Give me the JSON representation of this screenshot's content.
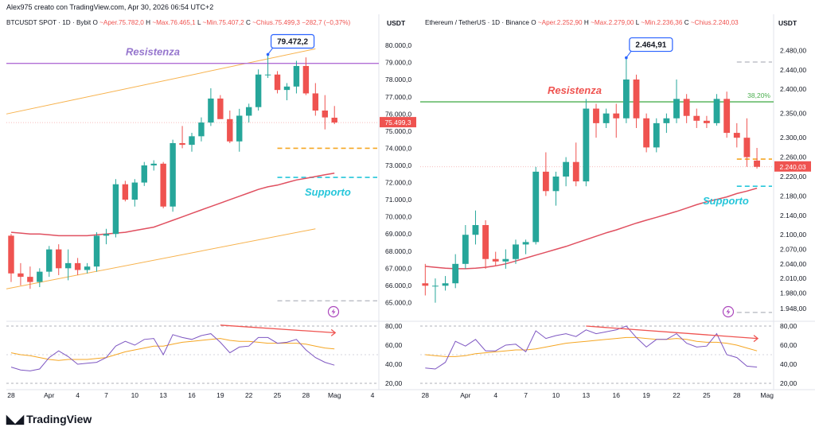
{
  "caption": "Alex975 creato con TradingView.com, Apr 30, 2026 06:54 UTC+2",
  "brand": {
    "name": "TradingView",
    "logo_icon": "tradingview-logo-icon"
  },
  "colors": {
    "up": "#26a69a",
    "down": "#ef5350",
    "ma": "#e05060",
    "resist_btc": "#b16fd6",
    "resist_eth": "#4caf50",
    "support": "#26c6da",
    "rsi": "#7e57c2",
    "rsi_ma": "#f5a623",
    "channel": "#f7b24d",
    "price_tag": "#ef5350",
    "callout": "#2962ff"
  },
  "chart_data": [
    {
      "type": "candlestick",
      "legend": {
        "symbol": "BTCUSDT SPOT · 1D · Bybit",
        "o_label": "O",
        "o": "~Aper.75.782,0",
        "h_label": "H",
        "h": "~Max.76.465,1",
        "l_label": "L",
        "l": "~Min.75.407,2",
        "c_label": "C",
        "c": "~Chius.75.499,3",
        "change": "−282,7 (−0,37%)"
      },
      "currency": "USDT",
      "ylim": [
        64000,
        80700
      ],
      "y_ticks": [
        "80.000,0",
        "79.000,0",
        "78.000,0",
        "77.000,0",
        "76.000,0",
        "75.000,0",
        "74.000,0",
        "73.000,0",
        "72.000,0",
        "71.000,0",
        "70.000,0",
        "69.000,0",
        "68.000,0",
        "67.000,0",
        "66.000,0",
        "65.000,0"
      ],
      "y_tick_values": [
        80000,
        79000,
        78000,
        77000,
        76000,
        75000,
        74000,
        73000,
        72000,
        71000,
        70000,
        69000,
        68000,
        67000,
        66000,
        65000
      ],
      "x_ticks": [
        "28",
        "Apr",
        "4",
        "7",
        "10",
        "13",
        "16",
        "19",
        "22",
        "25",
        "28",
        "Mag",
        "4"
      ],
      "x_tick_index": [
        0,
        4,
        7,
        10,
        13,
        16,
        19,
        22,
        25,
        28,
        31,
        34,
        38
      ],
      "n_slots": 39,
      "candles": [
        {
          "o": 68900,
          "h": 69000,
          "l": 66200,
          "c": 66700
        },
        {
          "o": 66700,
          "h": 67300,
          "l": 66000,
          "c": 66500
        },
        {
          "o": 66500,
          "h": 67100,
          "l": 65800,
          "c": 66200
        },
        {
          "o": 66200,
          "h": 67000,
          "l": 65900,
          "c": 66800
        },
        {
          "o": 66800,
          "h": 68300,
          "l": 66500,
          "c": 68100
        },
        {
          "o": 68100,
          "h": 68400,
          "l": 66600,
          "c": 67000
        },
        {
          "o": 67000,
          "h": 68100,
          "l": 66300,
          "c": 67300
        },
        {
          "o": 67300,
          "h": 67600,
          "l": 66600,
          "c": 66900
        },
        {
          "o": 66900,
          "h": 67300,
          "l": 66700,
          "c": 67100
        },
        {
          "o": 67100,
          "h": 69100,
          "l": 66800,
          "c": 68900
        },
        {
          "o": 68900,
          "h": 69300,
          "l": 68400,
          "c": 69000
        },
        {
          "o": 69000,
          "h": 72200,
          "l": 68800,
          "c": 71900
        },
        {
          "o": 71900,
          "h": 72100,
          "l": 70900,
          "c": 71000
        },
        {
          "o": 71000,
          "h": 72200,
          "l": 70600,
          "c": 72000
        },
        {
          "o": 72000,
          "h": 73200,
          "l": 71800,
          "c": 73000
        },
        {
          "o": 73000,
          "h": 73300,
          "l": 72700,
          "c": 73100
        },
        {
          "o": 73100,
          "h": 73200,
          "l": 70500,
          "c": 70600
        },
        {
          "o": 70600,
          "h": 74500,
          "l": 70300,
          "c": 74300
        },
        {
          "o": 74300,
          "h": 75300,
          "l": 74000,
          "c": 74200
        },
        {
          "o": 74200,
          "h": 74900,
          "l": 73800,
          "c": 74700
        },
        {
          "o": 74700,
          "h": 75800,
          "l": 74400,
          "c": 75500
        },
        {
          "o": 75500,
          "h": 77500,
          "l": 75300,
          "c": 76900
        },
        {
          "o": 76900,
          "h": 77100,
          "l": 75800,
          "c": 75700
        },
        {
          "o": 75700,
          "h": 76200,
          "l": 74300,
          "c": 74400
        },
        {
          "o": 74400,
          "h": 76300,
          "l": 73800,
          "c": 75900
        },
        {
          "o": 75900,
          "h": 76600,
          "l": 75500,
          "c": 76400
        },
        {
          "o": 76400,
          "h": 78600,
          "l": 76200,
          "c": 78300
        },
        {
          "o": 78300,
          "h": 79472.2,
          "l": 78100,
          "c": 78300
        },
        {
          "o": 78300,
          "h": 78500,
          "l": 77200,
          "c": 77400
        },
        {
          "o": 77400,
          "h": 77800,
          "l": 76800,
          "c": 77600
        },
        {
          "o": 77600,
          "h": 79100,
          "l": 77200,
          "c": 78800
        },
        {
          "o": 78800,
          "h": 79300,
          "l": 77100,
          "c": 77200
        },
        {
          "o": 77200,
          "h": 77800,
          "l": 75900,
          "c": 76200
        },
        {
          "o": 76200,
          "h": 77100,
          "l": 75100,
          "c": 75800
        },
        {
          "o": 75782,
          "h": 76465.1,
          "l": 75407.2,
          "c": 75499.3
        }
      ],
      "ma": [
        69100,
        69050,
        69000,
        69000,
        68950,
        68900,
        68900,
        68900,
        68900,
        68950,
        69000,
        69050,
        69100,
        69200,
        69300,
        69400,
        69600,
        69800,
        70000,
        70200,
        70400,
        70600,
        70800,
        71000,
        71200,
        71400,
        71600,
        71750,
        71850,
        72000,
        72150,
        72250,
        72350,
        72450,
        72550
      ],
      "resistance": {
        "label": "Resistenza",
        "value": 78950
      },
      "support": {
        "label": "Supporto",
        "value": 72300
      },
      "dashed_orange": 74000,
      "dashed_gray": 65100,
      "price_label": "75.499,3",
      "price_value": 75499.3,
      "callout": {
        "label": "79.472,2",
        "value": 79472.2,
        "index": 27
      },
      "channel": {
        "upper": [
          [
            0,
            76000
          ],
          [
            32,
            79800
          ]
        ],
        "lower": [
          [
            0,
            65800
          ],
          [
            32,
            69300
          ]
        ]
      },
      "rsi": {
        "ticks": [
          "80,00",
          "60,00",
          "40,00",
          "20,00"
        ],
        "tick_values": [
          80,
          60,
          40,
          20
        ],
        "ylim": [
          15,
          85
        ],
        "values": [
          37,
          34,
          33,
          35,
          47,
          54,
          48,
          40,
          41,
          42,
          47,
          59,
          64,
          60,
          66,
          67,
          50,
          71,
          68,
          66,
          70,
          72,
          63,
          52,
          58,
          59,
          68,
          68,
          62,
          63,
          66,
          55,
          47,
          42,
          39
        ],
        "ma": [
          52,
          50,
          49,
          47,
          45,
          44,
          45,
          45,
          45,
          46,
          47,
          50,
          53,
          55,
          57,
          59,
          59,
          61,
          63,
          64,
          65,
          66,
          67,
          65,
          64,
          64,
          63,
          62,
          62,
          62,
          62,
          61,
          59,
          57,
          56
        ],
        "divergence": [
          [
            22,
            81
          ],
          [
            34,
            73
          ]
        ]
      }
    },
    {
      "type": "candlestick",
      "legend": {
        "symbol": "Ethereum / TetherUS · 1D · Binance",
        "o_label": "O",
        "o": "~Aper.2.252,90",
        "h_label": "H",
        "h": "~Max.2.279,00",
        "l_label": "L",
        "l": "~Min.2.236,36",
        "c_label": "C",
        "c": "~Chius.2.240,03"
      },
      "currency": "USDT",
      "ylim": [
        1925,
        2515
      ],
      "y_ticks": [
        "2.480,00",
        "2.440,00",
        "2.400,00",
        "2.350,00",
        "2.300,00",
        "2.260,00",
        "2.220,00",
        "2.180,00",
        "2.140,00",
        "2.100,00",
        "2.070,00",
        "2.040,00",
        "2.010,00",
        "1.980,00",
        "1.948,00"
      ],
      "y_tick_values": [
        2480,
        2440,
        2400,
        2350,
        2300,
        2260,
        2220,
        2180,
        2140,
        2100,
        2070,
        2040,
        2010,
        1980,
        1948
      ],
      "x_ticks": [
        "28",
        "Apr",
        "4",
        "7",
        "10",
        "13",
        "16",
        "19",
        "22",
        "25",
        "28",
        "Mag"
      ],
      "x_tick_index": [
        0,
        4,
        7,
        10,
        13,
        16,
        19,
        22,
        25,
        28,
        31,
        34
      ],
      "n_slots": 35,
      "candles": [
        {
          "o": 2000,
          "h": 2040,
          "l": 1975,
          "c": 1995
        },
        {
          "o": 1995,
          "h": 2010,
          "l": 1960,
          "c": 1995
        },
        {
          "o": 1995,
          "h": 2015,
          "l": 1985,
          "c": 2000
        },
        {
          "o": 2000,
          "h": 2060,
          "l": 1990,
          "c": 2040
        },
        {
          "o": 2040,
          "h": 2120,
          "l": 2030,
          "c": 2100
        },
        {
          "o": 2100,
          "h": 2150,
          "l": 2080,
          "c": 2120
        },
        {
          "o": 2120,
          "h": 2130,
          "l": 2030,
          "c": 2050
        },
        {
          "o": 2050,
          "h": 2065,
          "l": 2035,
          "c": 2045
        },
        {
          "o": 2045,
          "h": 2070,
          "l": 2030,
          "c": 2050
        },
        {
          "o": 2050,
          "h": 2090,
          "l": 2040,
          "c": 2080
        },
        {
          "o": 2080,
          "h": 2090,
          "l": 2060,
          "c": 2085
        },
        {
          "o": 2085,
          "h": 2240,
          "l": 2080,
          "c": 2230
        },
        {
          "o": 2230,
          "h": 2270,
          "l": 2180,
          "c": 2190
        },
        {
          "o": 2190,
          "h": 2230,
          "l": 2160,
          "c": 2220
        },
        {
          "o": 2220,
          "h": 2260,
          "l": 2200,
          "c": 2250
        },
        {
          "o": 2250,
          "h": 2290,
          "l": 2200,
          "c": 2210
        },
        {
          "o": 2210,
          "h": 2380,
          "l": 2200,
          "c": 2360
        },
        {
          "o": 2360,
          "h": 2370,
          "l": 2300,
          "c": 2330
        },
        {
          "o": 2330,
          "h": 2360,
          "l": 2320,
          "c": 2350
        },
        {
          "o": 2350,
          "h": 2370,
          "l": 2300,
          "c": 2340
        },
        {
          "o": 2340,
          "h": 2464.91,
          "l": 2330,
          "c": 2420
        },
        {
          "o": 2420,
          "h": 2430,
          "l": 2320,
          "c": 2340
        },
        {
          "o": 2340,
          "h": 2350,
          "l": 2270,
          "c": 2280
        },
        {
          "o": 2280,
          "h": 2340,
          "l": 2270,
          "c": 2330
        },
        {
          "o": 2330,
          "h": 2350,
          "l": 2310,
          "c": 2340
        },
        {
          "o": 2340,
          "h": 2420,
          "l": 2330,
          "c": 2380
        },
        {
          "o": 2380,
          "h": 2390,
          "l": 2330,
          "c": 2345
        },
        {
          "o": 2345,
          "h": 2360,
          "l": 2320,
          "c": 2335
        },
        {
          "o": 2335,
          "h": 2345,
          "l": 2320,
          "c": 2330
        },
        {
          "o": 2330,
          "h": 2390,
          "l": 2325,
          "c": 2380
        },
        {
          "o": 2380,
          "h": 2395,
          "l": 2300,
          "c": 2310
        },
        {
          "o": 2310,
          "h": 2330,
          "l": 2280,
          "c": 2300
        },
        {
          "o": 2300,
          "h": 2340,
          "l": 2240,
          "c": 2260
        },
        {
          "o": 2252.9,
          "h": 2279,
          "l": 2236.36,
          "c": 2240.03
        }
      ],
      "ma": [
        2035,
        2033,
        2031,
        2030,
        2030,
        2031,
        2033,
        2036,
        2040,
        2046,
        2052,
        2058,
        2064,
        2070,
        2076,
        2083,
        2090,
        2097,
        2104,
        2110,
        2117,
        2124,
        2130,
        2136,
        2142,
        2148,
        2155,
        2162,
        2168,
        2173,
        2178,
        2185,
        2190,
        2196
      ],
      "resistance": {
        "label": "Resistenza",
        "value": 2374
      },
      "fib": {
        "label": "38,20%",
        "value": 2374
      },
      "support": {
        "label": "Supporto",
        "value": 2200
      },
      "dashed_orange": 2256,
      "dashed_gray_top": 2456,
      "dashed_gray": 1940,
      "price_label": "2.240,03",
      "price_value": 2240.03,
      "callout": {
        "label": "2.464,91",
        "value": 2464.91,
        "index": 20
      },
      "rsi": {
        "ticks": [
          "80,00",
          "60,00",
          "40,00",
          "20,00"
        ],
        "tick_values": [
          80,
          60,
          40,
          20
        ],
        "ylim": [
          15,
          85
        ],
        "values": [
          36,
          35,
          42,
          64,
          59,
          66,
          54,
          54,
          60,
          61,
          53,
          75,
          67,
          70,
          72,
          69,
          76,
          72,
          74,
          76,
          80,
          68,
          58,
          66,
          66,
          72,
          62,
          58,
          59,
          72,
          50,
          47,
          38,
          37
        ],
        "ma": [
          50,
          49,
          48,
          48,
          49,
          51,
          52,
          53,
          54,
          55,
          55,
          56,
          58,
          60,
          62,
          63,
          64,
          65,
          66,
          67,
          68,
          68,
          67,
          66,
          66,
          67,
          66,
          64,
          63,
          63,
          62,
          60,
          57,
          54
        ],
        "divergence": [
          [
            16,
            80
          ],
          [
            33,
            67
          ]
        ]
      }
    }
  ]
}
